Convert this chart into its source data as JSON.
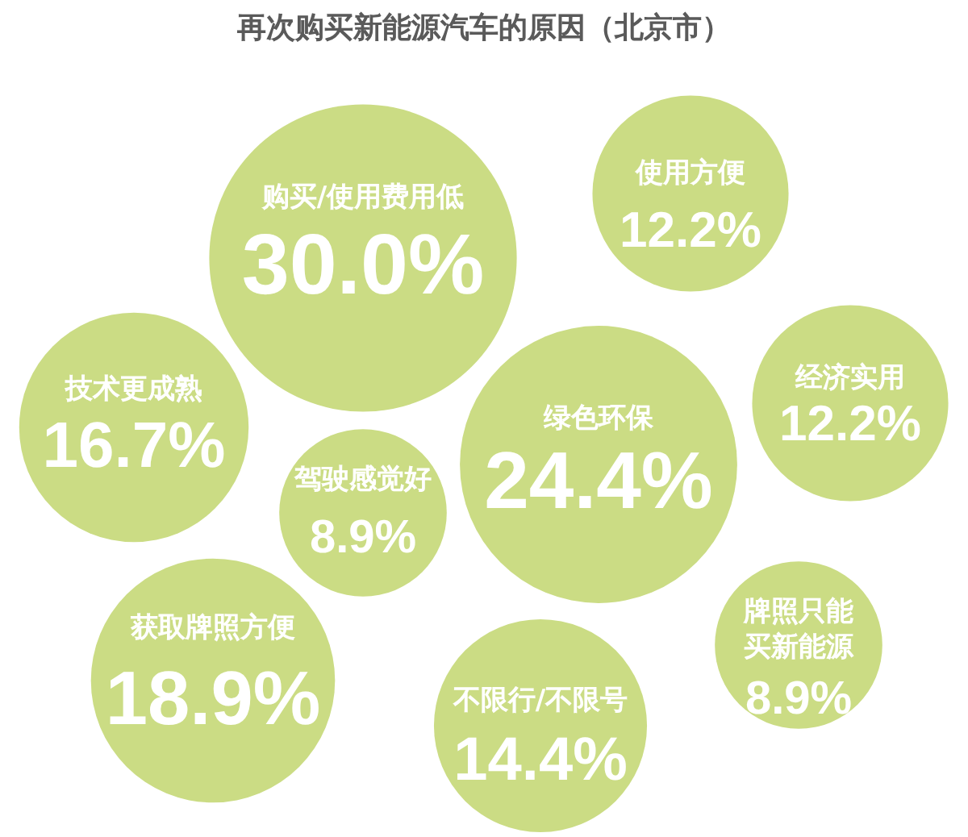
{
  "chart_data": {
    "type": "other",
    "title": "再次购买新能源汽车的原因（北京市）",
    "categories": [
      "购买/使用费用低",
      "使用方便",
      "技术更成熟",
      "绿色环保",
      "经济实用",
      "驾驶感觉好",
      "获取牌照方便",
      "不限行/不限号",
      "牌照只能买新能源"
    ],
    "values": [
      30.0,
      12.2,
      16.7,
      24.4,
      12.2,
      8.9,
      18.9,
      14.4,
      8.9
    ],
    "value_labels": [
      "30.0%",
      "12.2%",
      "16.7%",
      "24.4%",
      "12.2%",
      "8.9%",
      "18.9%",
      "14.4%",
      "8.9%"
    ],
    "color": "#cbdc84"
  }
}
